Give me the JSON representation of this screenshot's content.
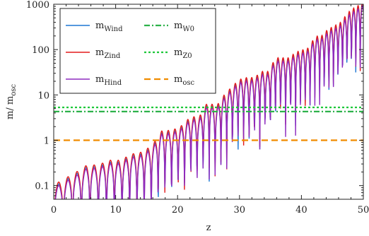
{
  "chart_data": {
    "type": "line",
    "xlabel": "z",
    "ylabel": "m/ m",
    "ylabel_sub": "osc",
    "xlim": [
      0,
      50
    ],
    "ylim": [
      0.05,
      1000
    ],
    "yscale": "log",
    "x_ticks": [
      0,
      10,
      20,
      30,
      40,
      50
    ],
    "x_tick_labels": [
      "0",
      "10",
      "20",
      "30",
      "40",
      "50"
    ],
    "y_ticks": [
      0.1,
      1,
      10,
      100,
      1000
    ],
    "y_tick_labels": [
      "0.1",
      "1",
      "10",
      "100",
      "1000"
    ],
    "grid": false,
    "legend_position": "top-left",
    "envelope": {
      "note_x": [
        0,
        5,
        10,
        15,
        20,
        25,
        30,
        35,
        40,
        45,
        50
      ],
      "peaks_x": [
        0.3,
        1.8,
        3.6,
        5.4,
        7.2,
        9.0,
        10.8,
        12.5,
        14.2,
        15.9,
        17.5,
        19.1,
        20.6,
        22.1,
        23.5,
        24.9,
        26.2,
        27.5,
        28.8,
        30.0,
        31.2,
        32.4,
        33.6,
        34.7,
        35.8,
        36.9,
        38.0,
        39.1,
        40.2,
        41.2,
        42.2,
        43.2,
        44.2,
        45.2,
        46.2,
        47.1,
        48.0,
        48.9,
        49.8
      ],
      "peaks_y": [
        0.1,
        0.13,
        0.18,
        0.26,
        0.26,
        0.33,
        0.33,
        0.45,
        0.5,
        0.7,
        1.5,
        1.5,
        1.9,
        3.0,
        3.0,
        6.5,
        5.0,
        9.0,
        14,
        20,
        22,
        22,
        30,
        30,
        60,
        60,
        60,
        80,
        90,
        100,
        180,
        180,
        250,
        300,
        350,
        500,
        700,
        800,
        1000
      ]
    },
    "series": [
      {
        "name": "m",
        "sub": "Wind",
        "color": "#1f77d4",
        "dash": "solid",
        "scale": 1.0,
        "seed": 1
      },
      {
        "name": "m",
        "sub": "Zind",
        "color": "#e31a1c",
        "dash": "solid",
        "scale": 1.1,
        "seed": 2
      },
      {
        "name": "m",
        "sub": "Hind",
        "color": "#8e2bbf",
        "dash": "solid",
        "scale": 0.92,
        "seed": 3
      },
      {
        "name": "m",
        "sub": "W0",
        "color": "#2db24a",
        "dash": "dashdot",
        "constant": 4.3
      },
      {
        "name": "m",
        "sub": "Z0",
        "color": "#1ec83a",
        "dash": "dotted",
        "constant": 5.3
      },
      {
        "name": "m",
        "sub": "osc",
        "color": "#f08c00",
        "dash": "dashed",
        "constant": 1.0
      }
    ]
  }
}
